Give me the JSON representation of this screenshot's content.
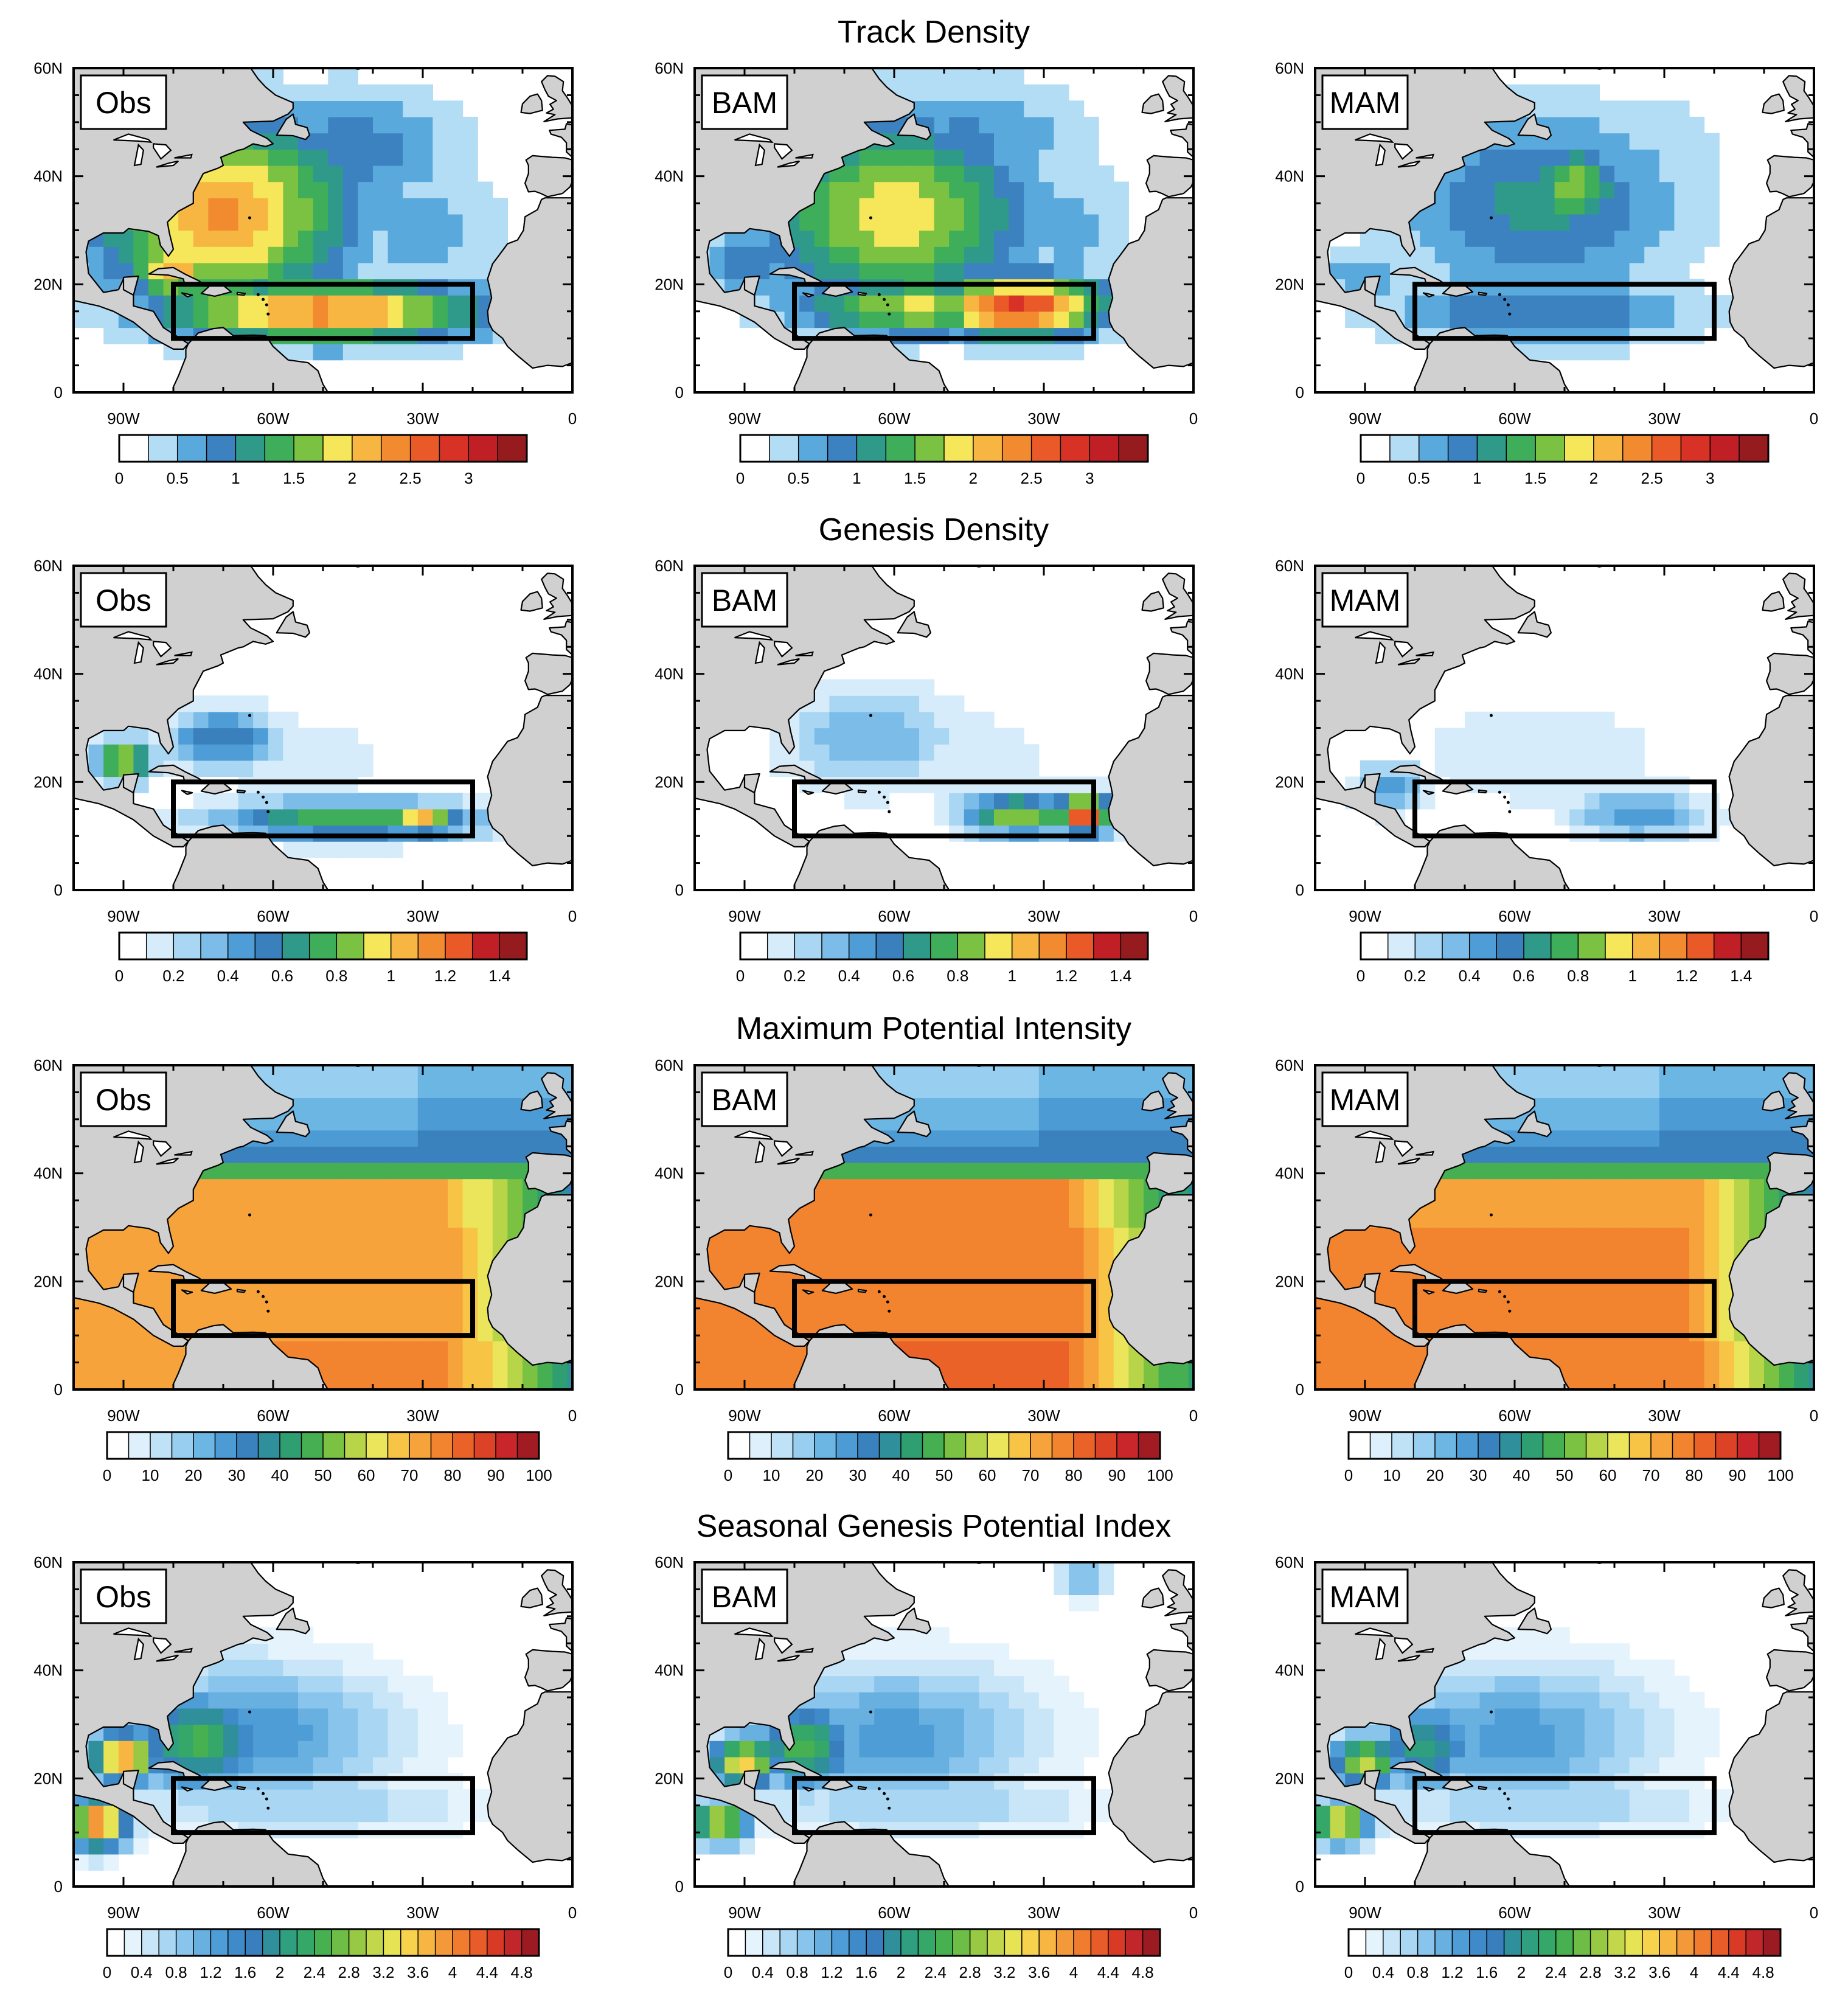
{
  "chart_data": [
    {
      "type": "heatmap",
      "title": "Track Density",
      "panels": [
        "Obs",
        "BAM",
        "MAM"
      ],
      "x_ticks": [
        "90W",
        "60W",
        "30W",
        "0"
      ],
      "y_ticks": [
        "60N",
        "40N",
        "20N",
        "0"
      ],
      "xlim": [
        -100,
        0
      ],
      "ylim": [
        0,
        60
      ],
      "box": {
        "lon": [
          -80,
          -20
        ],
        "lat": [
          10,
          20
        ]
      },
      "colorbar": {
        "levels": [
          0,
          0.25,
          0.5,
          0.75,
          1,
          1.25,
          1.5,
          1.75,
          2,
          2.25,
          2.5,
          2.75,
          3,
          3.25
        ],
        "labels": [
          "0",
          "0.5",
          "1",
          "1.5",
          "2",
          "2.5",
          "3"
        ],
        "label_values": [
          0,
          0.5,
          1,
          1.5,
          2,
          2.5,
          3
        ],
        "colors": [
          "#ffffff",
          "#b3dcf5",
          "#5aa9dc",
          "#3d82c0",
          "#2f9a8a",
          "#3fae5a",
          "#7cc242",
          "#f5e65a",
          "#f7b642",
          "#f28a30",
          "#ea5a28",
          "#d83226",
          "#c01f26",
          "#961b1e"
        ]
      },
      "blobs": [
        [
          {
            "lon": -70,
            "lat": 33,
            "rx": 26,
            "ry": 18,
            "v": 2.3
          },
          {
            "lon": -60,
            "lat": 38,
            "rx": 20,
            "ry": 14,
            "v": 1.6
          },
          {
            "lon": -50,
            "lat": 15,
            "rx": 34,
            "ry": 6,
            "v": 2.4
          },
          {
            "lon": -80,
            "lat": 23,
            "rx": 9,
            "ry": 6,
            "v": 2.2
          },
          {
            "lon": -45,
            "lat": 45,
            "rx": 24,
            "ry": 12,
            "v": 0.9
          },
          {
            "lon": -30,
            "lat": 30,
            "rx": 18,
            "ry": 16,
            "v": 0.6
          }
        ],
        [
          {
            "lon": -60,
            "lat": 33,
            "rx": 28,
            "ry": 18,
            "v": 1.9
          },
          {
            "lon": -35,
            "lat": 16,
            "rx": 18,
            "ry": 6,
            "v": 2.8
          },
          {
            "lon": -55,
            "lat": 16,
            "rx": 26,
            "ry": 6,
            "v": 1.8
          },
          {
            "lon": -90,
            "lat": 24,
            "rx": 10,
            "ry": 6,
            "v": 1.0
          },
          {
            "lon": -45,
            "lat": 47,
            "rx": 24,
            "ry": 12,
            "v": 0.8
          },
          {
            "lon": -25,
            "lat": 30,
            "rx": 14,
            "ry": 16,
            "v": 0.6
          }
        ],
        [
          {
            "lon": -55,
            "lat": 35,
            "rx": 30,
            "ry": 18,
            "v": 1.1
          },
          {
            "lon": -48,
            "lat": 38,
            "rx": 9,
            "ry": 8,
            "v": 1.7
          },
          {
            "lon": -55,
            "lat": 15,
            "rx": 34,
            "ry": 7,
            "v": 1.0
          },
          {
            "lon": -90,
            "lat": 22,
            "rx": 10,
            "ry": 6,
            "v": 0.7
          },
          {
            "lon": -30,
            "lat": 45,
            "rx": 16,
            "ry": 12,
            "v": 0.4
          }
        ]
      ]
    },
    {
      "type": "heatmap",
      "title": "Genesis Density",
      "panels": [
        "Obs",
        "BAM",
        "MAM"
      ],
      "x_ticks": [
        "90W",
        "60W",
        "30W",
        "0"
      ],
      "y_ticks": [
        "60N",
        "40N",
        "20N",
        "0"
      ],
      "xlim": [
        -100,
        0
      ],
      "ylim": [
        0,
        60
      ],
      "box": {
        "lon": [
          -80,
          -20
        ],
        "lat": [
          10,
          20
        ]
      },
      "colorbar": {
        "levels": [
          0,
          0.1,
          0.2,
          0.3,
          0.4,
          0.5,
          0.6,
          0.7,
          0.8,
          0.9,
          1,
          1.1,
          1.2,
          1.3,
          1.4
        ],
        "labels": [
          "0",
          "0.2",
          "0.4",
          "0.6",
          "0.8",
          "1",
          "1.2",
          "1.4"
        ],
        "label_values": [
          0,
          0.2,
          0.4,
          0.6,
          0.8,
          1,
          1.2,
          1.4
        ],
        "colors": [
          "#ffffff",
          "#d6ecfa",
          "#a9d6f2",
          "#7bbde8",
          "#4f9dd6",
          "#3a80bd",
          "#2f9a8a",
          "#3fae5a",
          "#7cc242",
          "#f5e65a",
          "#f7b642",
          "#f28a30",
          "#ea5a28",
          "#c01f26",
          "#961b1e"
        ]
      },
      "blobs": [
        [
          {
            "lon": -90,
            "lat": 24,
            "rx": 6,
            "ry": 4,
            "v": 1.0
          },
          {
            "lon": -70,
            "lat": 28,
            "rx": 12,
            "ry": 6,
            "v": 0.6
          },
          {
            "lon": -45,
            "lat": 13,
            "rx": 28,
            "ry": 4,
            "v": 0.8
          },
          {
            "lon": -30,
            "lat": 13,
            "rx": 8,
            "ry": 3,
            "v": 1.1
          },
          {
            "lon": -55,
            "lat": 24,
            "rx": 20,
            "ry": 8,
            "v": 0.2
          }
        ],
        [
          {
            "lon": -22,
            "lat": 14,
            "rx": 6,
            "ry": 4,
            "v": 1.3
          },
          {
            "lon": -35,
            "lat": 14,
            "rx": 12,
            "ry": 4,
            "v": 0.9
          },
          {
            "lon": -65,
            "lat": 28,
            "rx": 18,
            "ry": 10,
            "v": 0.4
          },
          {
            "lon": -50,
            "lat": 25,
            "rx": 30,
            "ry": 12,
            "v": 0.15
          }
        ],
        [
          {
            "lon": -35,
            "lat": 14,
            "rx": 14,
            "ry": 5,
            "v": 0.5
          },
          {
            "lon": -85,
            "lat": 19,
            "rx": 7,
            "ry": 5,
            "v": 0.5
          },
          {
            "lon": -55,
            "lat": 25,
            "rx": 34,
            "ry": 14,
            "v": 0.15
          }
        ]
      ]
    },
    {
      "type": "heatmap",
      "title": "Maximum Potential Intensity",
      "panels": [
        "Obs",
        "BAM",
        "MAM"
      ],
      "x_ticks": [
        "90W",
        "60W",
        "30W",
        "0"
      ],
      "y_ticks": [
        "60N",
        "40N",
        "20N",
        "0"
      ],
      "xlim": [
        -100,
        0
      ],
      "ylim": [
        0,
        60
      ],
      "box": {
        "lon": [
          -80,
          -20
        ],
        "lat": [
          10,
          20
        ]
      },
      "colorbar": {
        "levels": [
          0,
          5,
          10,
          15,
          20,
          25,
          30,
          35,
          40,
          45,
          50,
          55,
          60,
          65,
          70,
          75,
          80,
          85,
          90,
          95,
          100
        ],
        "labels": [
          "0",
          "10",
          "20",
          "30",
          "40",
          "50",
          "60",
          "70",
          "80",
          "90",
          "100"
        ],
        "label_values": [
          0,
          10,
          20,
          30,
          40,
          50,
          60,
          70,
          80,
          90,
          100
        ],
        "colors": [
          "#ffffff",
          "#def0fb",
          "#bfe2f6",
          "#98cff0",
          "#6cb6e4",
          "#4d9bd4",
          "#3a82be",
          "#2f8f9a",
          "#2f9f72",
          "#45af52",
          "#7cc242",
          "#b8d448",
          "#eae55a",
          "#f7c446",
          "#f5a33a",
          "#f28430",
          "#ea6228",
          "#dc4226",
          "#c8262a",
          "#a11c22"
        ]
      },
      "gradient": {
        "type": "mpi",
        "top": 36,
        "north": 28,
        "south": 72,
        "tropic": 76
      }
    },
    {
      "type": "heatmap",
      "title": "Seasonal Genesis Potential Index",
      "panels": [
        "Obs",
        "BAM",
        "MAM"
      ],
      "x_ticks": [
        "90W",
        "60W",
        "30W",
        "0"
      ],
      "y_ticks": [
        "60N",
        "40N",
        "20N",
        "0"
      ],
      "xlim": [
        -100,
        0
      ],
      "ylim": [
        0,
        60
      ],
      "box": {
        "lon": [
          -80,
          -20
        ],
        "lat": [
          10,
          20
        ]
      },
      "colorbar": {
        "levels": [
          0,
          0.2,
          0.4,
          0.6,
          0.8,
          1,
          1.2,
          1.4,
          1.6,
          1.8,
          2,
          2.2,
          2.4,
          2.6,
          2.8,
          3,
          3.2,
          3.4,
          3.6,
          3.8,
          4,
          4.2,
          4.4,
          4.6,
          4.8,
          5
        ],
        "labels": [
          "0",
          "0.4",
          "0.8",
          "1.2",
          "1.6",
          "2",
          "2.4",
          "2.8",
          "3.2",
          "3.6",
          "4",
          "4.4",
          "4.8"
        ],
        "label_values": [
          0,
          0.4,
          0.8,
          1.2,
          1.6,
          2,
          2.4,
          2.8,
          3.2,
          3.6,
          4,
          4.4,
          4.8
        ],
        "colors": [
          "#ffffff",
          "#e4f3fc",
          "#c9e6f8",
          "#a9d6f2",
          "#88c4eb",
          "#67b0e0",
          "#4f9dd6",
          "#3f8ac8",
          "#3a7fbd",
          "#2f8f9a",
          "#2f9f80",
          "#35a768",
          "#47b152",
          "#6dbd46",
          "#98c944",
          "#c3d74a",
          "#e6e455",
          "#f7d24c",
          "#f7b642",
          "#f4993a",
          "#f07c30",
          "#e75c28",
          "#d83a26",
          "#c0262a",
          "#9c1b22"
        ]
      },
      "blobs": [
        [
          {
            "lon": -65,
            "lat": 28,
            "rx": 30,
            "ry": 14,
            "v": 1.4
          },
          {
            "lon": -75,
            "lat": 27,
            "rx": 14,
            "ry": 9,
            "v": 2.5
          },
          {
            "lon": -90,
            "lat": 24,
            "rx": 7,
            "ry": 5,
            "v": 4.0
          },
          {
            "lon": -95,
            "lat": 12,
            "rx": 6,
            "ry": 5,
            "v": 4.2
          },
          {
            "lon": -55,
            "lat": 15,
            "rx": 36,
            "ry": 6,
            "v": 0.8
          }
        ],
        [
          {
            "lon": -60,
            "lat": 28,
            "rx": 30,
            "ry": 14,
            "v": 1.3
          },
          {
            "lon": -78,
            "lat": 26,
            "rx": 10,
            "ry": 8,
            "v": 2.6
          },
          {
            "lon": -90,
            "lat": 23,
            "rx": 7,
            "ry": 5,
            "v": 3.5
          },
          {
            "lon": -95,
            "lat": 12,
            "rx": 6,
            "ry": 4,
            "v": 3.4
          },
          {
            "lon": -55,
            "lat": 15,
            "rx": 36,
            "ry": 6,
            "v": 0.8
          },
          {
            "lon": -22,
            "lat": 57,
            "rx": 6,
            "ry": 4,
            "v": 1.0
          }
        ],
        [
          {
            "lon": -60,
            "lat": 28,
            "rx": 30,
            "ry": 14,
            "v": 1.3
          },
          {
            "lon": -78,
            "lat": 26,
            "rx": 10,
            "ry": 8,
            "v": 2.2
          },
          {
            "lon": -90,
            "lat": 23,
            "rx": 7,
            "ry": 5,
            "v": 3.2
          },
          {
            "lon": -95,
            "lat": 12,
            "rx": 6,
            "ry": 4,
            "v": 3.6
          },
          {
            "lon": -55,
            "lat": 15,
            "rx": 36,
            "ry": 6,
            "v": 0.8
          }
        ]
      ]
    }
  ],
  "colors": {
    "land": "#d0d0d0",
    "coast": "#000000",
    "box": "#000000",
    "ocean_zero": "#ffffff"
  }
}
